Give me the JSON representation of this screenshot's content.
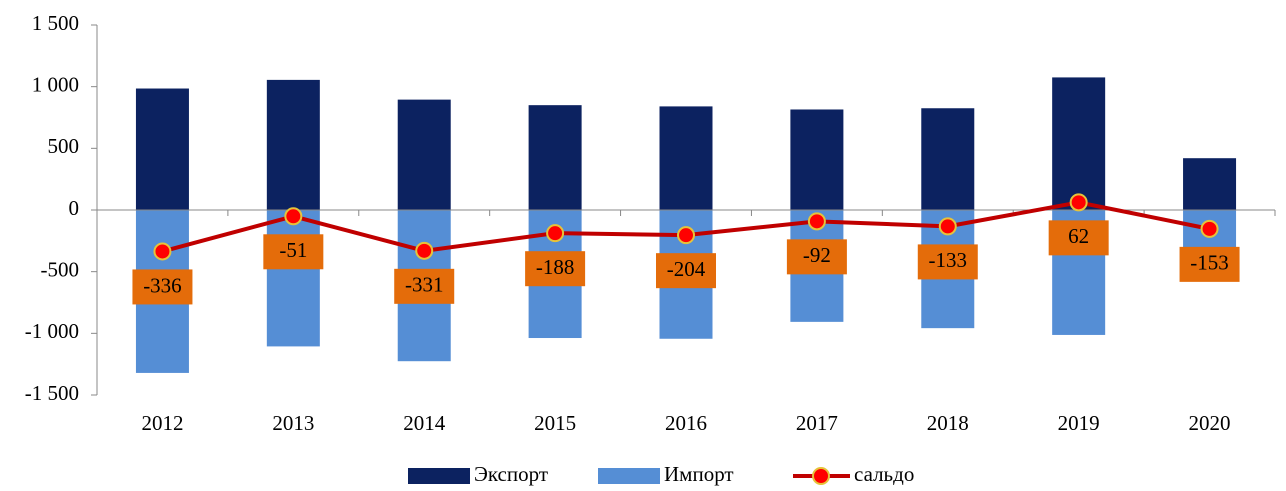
{
  "chart_data": {
    "type": "bar-line",
    "categories": [
      "2012",
      "2013",
      "2014",
      "2015",
      "2016",
      "2017",
      "2018",
      "2019",
      "2020"
    ],
    "series": [
      {
        "name": "Экспорт",
        "type": "bar",
        "color": "#0c2260",
        "values": [
          985,
          1055,
          895,
          850,
          840,
          815,
          825,
          1075,
          420
        ]
      },
      {
        "name": "Импорт",
        "type": "bar",
        "color": "#558ed5",
        "values": [
          -1321,
          -1106,
          -1226,
          -1038,
          -1044,
          -907,
          -958,
          -1013,
          -573
        ]
      },
      {
        "name": "сальдо",
        "type": "line",
        "color": "#c00000",
        "marker_color": "#ff0000",
        "label_color": "#e46c0a",
        "values": [
          -336,
          -51,
          -331,
          -188,
          -204,
          -92,
          -133,
          62,
          -153
        ]
      }
    ],
    "ylim": [
      -1500,
      1500
    ],
    "yticks": [
      {
        "value": -1500,
        "label": "-1 500"
      },
      {
        "value": -1000,
        "label": "-1 000"
      },
      -500,
      0,
      500,
      {
        "value": 1000,
        "label": "1 000"
      },
      {
        "value": 1500,
        "label": "1 500"
      }
    ],
    "grid": false,
    "legend": "bottom"
  }
}
